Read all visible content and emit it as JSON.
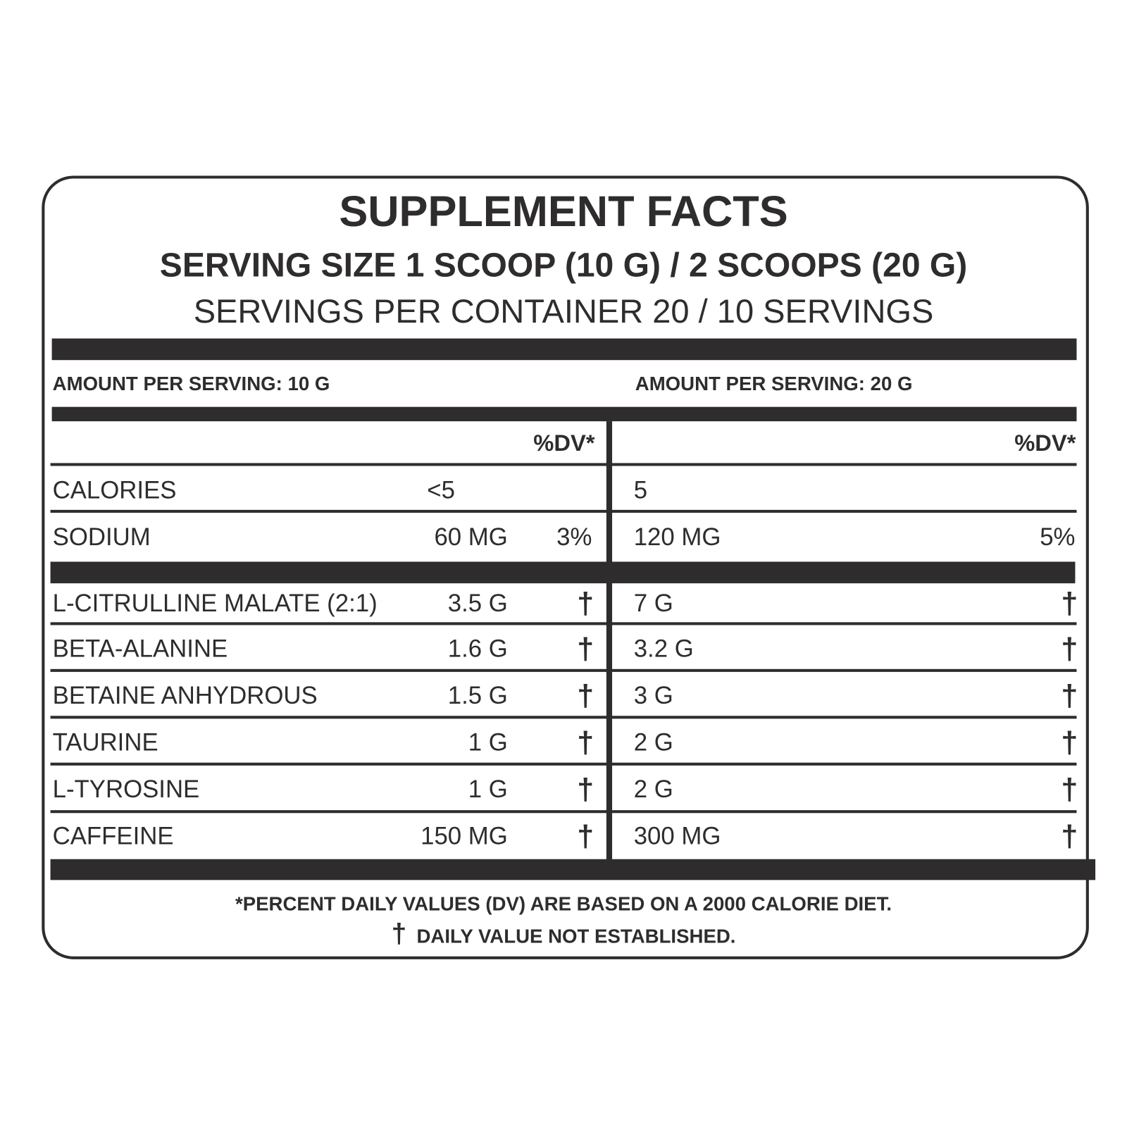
{
  "title": "SUPPLEMENT FACTS",
  "serving_size": "SERVING SIZE 1 SCOOP (10 G) / 2 SCOOPS (20 G)",
  "servings_per_container": "SERVINGS PER CONTAINER 20 / 10 SERVINGS",
  "left_header": "AMOUNT PER SERVING: 10 G",
  "right_header": "AMOUNT PER SERVING: 20 G",
  "dv_header": "%DV*",
  "rows": [
    {
      "name": "CALORIES",
      "amount_10g": "<5",
      "dv_10g": "",
      "amount_20g": "5",
      "dv_20g": ""
    },
    {
      "name": "SODIUM",
      "amount_10g": "60 MG",
      "dv_10g": "3%",
      "amount_20g": "120 MG",
      "dv_20g": "5%"
    },
    {
      "name": "L-CITRULLINE MALATE (2:1)",
      "amount_10g": "3.5 G",
      "dv_10g": "†",
      "amount_20g": "7 G",
      "dv_20g": "†"
    },
    {
      "name": "BETA-ALANINE",
      "amount_10g": "1.6 G",
      "dv_10g": "†",
      "amount_20g": "3.2 G",
      "dv_20g": "†"
    },
    {
      "name": "BETAINE ANHYDROUS",
      "amount_10g": "1.5 G",
      "dv_10g": "†",
      "amount_20g": "3 G",
      "dv_20g": "†"
    },
    {
      "name": "TAURINE",
      "amount_10g": "1 G",
      "dv_10g": "†",
      "amount_20g": "2 G",
      "dv_20g": "†"
    },
    {
      "name": "L-TYROSINE",
      "amount_10g": "1 G",
      "dv_10g": "†",
      "amount_20g": "2 G",
      "dv_20g": "†"
    },
    {
      "name": "CAFFEINE",
      "amount_10g": "150 MG",
      "dv_10g": "†",
      "amount_20g": "300 MG",
      "dv_20g": "†"
    }
  ],
  "footer": {
    "dv_note": "*PERCENT DAILY VALUES (DV) ARE BASED ON A 2000 CALORIE DIET.",
    "dagger": "†",
    "dagger_note": "DAILY VALUE NOT ESTABLISHED."
  },
  "colors": {
    "ink": "#2e2c2c",
    "background": "#ffffff"
  }
}
